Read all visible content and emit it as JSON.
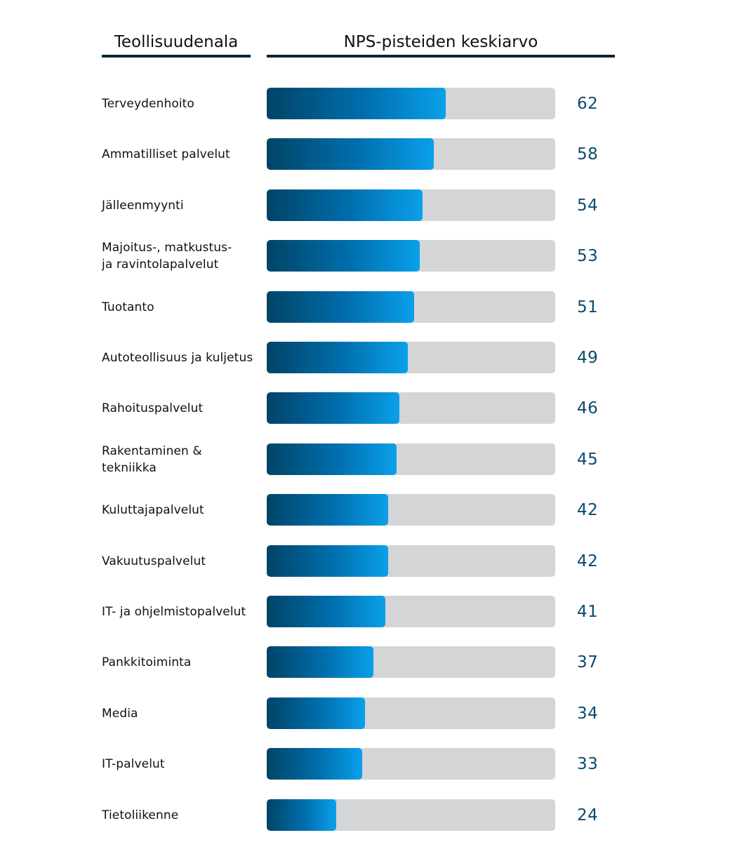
{
  "header": {
    "category_label": "Teollisuudenala",
    "value_label": "NPS-pisteiden keskiarvo"
  },
  "colors": {
    "header_rule": "#102433",
    "track": "#d4d5d7",
    "bar_dark": "#004466",
    "bar_light": "#0aa0ea",
    "value_text": "#0b4a6e"
  },
  "chart_data": {
    "type": "bar",
    "orientation": "horizontal",
    "categories": [
      "Terveydenhoito",
      "Ammatilliset palvelut",
      "Jälleenmyynti",
      "Majoitus-, matkustus-\nja ravintolapalvelut",
      "Tuotanto",
      "Autoteollisuus ja kuljetus",
      "Rahoituspalvelut",
      "Rakentaminen & tekniikka",
      "Kuluttajapalvelut",
      "Vakuutuspalvelut",
      "IT- ja ohjelmistopalvelut",
      "Pankkitoiminta",
      "Media",
      "IT-palvelut",
      "Tietoliikenne"
    ],
    "values": [
      62,
      58,
      54,
      53,
      51,
      49,
      46,
      45,
      42,
      42,
      41,
      37,
      34,
      33,
      24
    ],
    "xlim": [
      0,
      100
    ],
    "grid": false,
    "legend": "none"
  }
}
